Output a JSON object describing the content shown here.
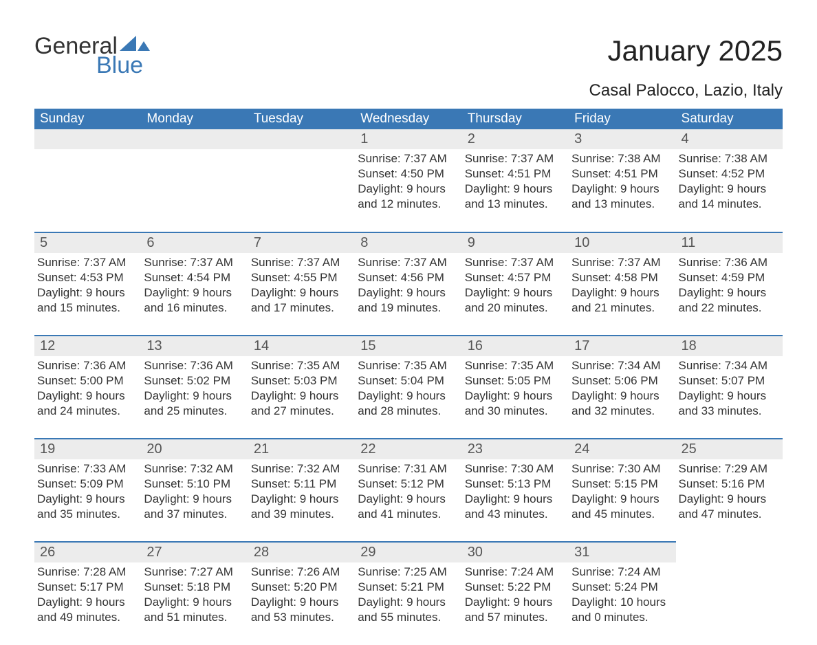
{
  "logo": {
    "general": "General",
    "blue": "Blue",
    "flag_color": "#3a78b5"
  },
  "title": "January 2025",
  "location": "Casal Palocco, Lazio, Italy",
  "colors": {
    "header_bg": "#3a78b5",
    "daynum_bg": "#ececec",
    "text": "#333333",
    "border": "#3a78b5"
  },
  "weekdays": [
    "Sunday",
    "Monday",
    "Tuesday",
    "Wednesday",
    "Thursday",
    "Friday",
    "Saturday"
  ],
  "weeks": [
    [
      null,
      null,
      null,
      {
        "n": "1",
        "sunrise": "Sunrise: 7:37 AM",
        "sunset": "Sunset: 4:50 PM",
        "d1": "Daylight: 9 hours",
        "d2": "and 12 minutes."
      },
      {
        "n": "2",
        "sunrise": "Sunrise: 7:37 AM",
        "sunset": "Sunset: 4:51 PM",
        "d1": "Daylight: 9 hours",
        "d2": "and 13 minutes."
      },
      {
        "n": "3",
        "sunrise": "Sunrise: 7:38 AM",
        "sunset": "Sunset: 4:51 PM",
        "d1": "Daylight: 9 hours",
        "d2": "and 13 minutes."
      },
      {
        "n": "4",
        "sunrise": "Sunrise: 7:38 AM",
        "sunset": "Sunset: 4:52 PM",
        "d1": "Daylight: 9 hours",
        "d2": "and 14 minutes."
      }
    ],
    [
      {
        "n": "5",
        "sunrise": "Sunrise: 7:37 AM",
        "sunset": "Sunset: 4:53 PM",
        "d1": "Daylight: 9 hours",
        "d2": "and 15 minutes."
      },
      {
        "n": "6",
        "sunrise": "Sunrise: 7:37 AM",
        "sunset": "Sunset: 4:54 PM",
        "d1": "Daylight: 9 hours",
        "d2": "and 16 minutes."
      },
      {
        "n": "7",
        "sunrise": "Sunrise: 7:37 AM",
        "sunset": "Sunset: 4:55 PM",
        "d1": "Daylight: 9 hours",
        "d2": "and 17 minutes."
      },
      {
        "n": "8",
        "sunrise": "Sunrise: 7:37 AM",
        "sunset": "Sunset: 4:56 PM",
        "d1": "Daylight: 9 hours",
        "d2": "and 19 minutes."
      },
      {
        "n": "9",
        "sunrise": "Sunrise: 7:37 AM",
        "sunset": "Sunset: 4:57 PM",
        "d1": "Daylight: 9 hours",
        "d2": "and 20 minutes."
      },
      {
        "n": "10",
        "sunrise": "Sunrise: 7:37 AM",
        "sunset": "Sunset: 4:58 PM",
        "d1": "Daylight: 9 hours",
        "d2": "and 21 minutes."
      },
      {
        "n": "11",
        "sunrise": "Sunrise: 7:36 AM",
        "sunset": "Sunset: 4:59 PM",
        "d1": "Daylight: 9 hours",
        "d2": "and 22 minutes."
      }
    ],
    [
      {
        "n": "12",
        "sunrise": "Sunrise: 7:36 AM",
        "sunset": "Sunset: 5:00 PM",
        "d1": "Daylight: 9 hours",
        "d2": "and 24 minutes."
      },
      {
        "n": "13",
        "sunrise": "Sunrise: 7:36 AM",
        "sunset": "Sunset: 5:02 PM",
        "d1": "Daylight: 9 hours",
        "d2": "and 25 minutes."
      },
      {
        "n": "14",
        "sunrise": "Sunrise: 7:35 AM",
        "sunset": "Sunset: 5:03 PM",
        "d1": "Daylight: 9 hours",
        "d2": "and 27 minutes."
      },
      {
        "n": "15",
        "sunrise": "Sunrise: 7:35 AM",
        "sunset": "Sunset: 5:04 PM",
        "d1": "Daylight: 9 hours",
        "d2": "and 28 minutes."
      },
      {
        "n": "16",
        "sunrise": "Sunrise: 7:35 AM",
        "sunset": "Sunset: 5:05 PM",
        "d1": "Daylight: 9 hours",
        "d2": "and 30 minutes."
      },
      {
        "n": "17",
        "sunrise": "Sunrise: 7:34 AM",
        "sunset": "Sunset: 5:06 PM",
        "d1": "Daylight: 9 hours",
        "d2": "and 32 minutes."
      },
      {
        "n": "18",
        "sunrise": "Sunrise: 7:34 AM",
        "sunset": "Sunset: 5:07 PM",
        "d1": "Daylight: 9 hours",
        "d2": "and 33 minutes."
      }
    ],
    [
      {
        "n": "19",
        "sunrise": "Sunrise: 7:33 AM",
        "sunset": "Sunset: 5:09 PM",
        "d1": "Daylight: 9 hours",
        "d2": "and 35 minutes."
      },
      {
        "n": "20",
        "sunrise": "Sunrise: 7:32 AM",
        "sunset": "Sunset: 5:10 PM",
        "d1": "Daylight: 9 hours",
        "d2": "and 37 minutes."
      },
      {
        "n": "21",
        "sunrise": "Sunrise: 7:32 AM",
        "sunset": "Sunset: 5:11 PM",
        "d1": "Daylight: 9 hours",
        "d2": "and 39 minutes."
      },
      {
        "n": "22",
        "sunrise": "Sunrise: 7:31 AM",
        "sunset": "Sunset: 5:12 PM",
        "d1": "Daylight: 9 hours",
        "d2": "and 41 minutes."
      },
      {
        "n": "23",
        "sunrise": "Sunrise: 7:30 AM",
        "sunset": "Sunset: 5:13 PM",
        "d1": "Daylight: 9 hours",
        "d2": "and 43 minutes."
      },
      {
        "n": "24",
        "sunrise": "Sunrise: 7:30 AM",
        "sunset": "Sunset: 5:15 PM",
        "d1": "Daylight: 9 hours",
        "d2": "and 45 minutes."
      },
      {
        "n": "25",
        "sunrise": "Sunrise: 7:29 AM",
        "sunset": "Sunset: 5:16 PM",
        "d1": "Daylight: 9 hours",
        "d2": "and 47 minutes."
      }
    ],
    [
      {
        "n": "26",
        "sunrise": "Sunrise: 7:28 AM",
        "sunset": "Sunset: 5:17 PM",
        "d1": "Daylight: 9 hours",
        "d2": "and 49 minutes."
      },
      {
        "n": "27",
        "sunrise": "Sunrise: 7:27 AM",
        "sunset": "Sunset: 5:18 PM",
        "d1": "Daylight: 9 hours",
        "d2": "and 51 minutes."
      },
      {
        "n": "28",
        "sunrise": "Sunrise: 7:26 AM",
        "sunset": "Sunset: 5:20 PM",
        "d1": "Daylight: 9 hours",
        "d2": "and 53 minutes."
      },
      {
        "n": "29",
        "sunrise": "Sunrise: 7:25 AM",
        "sunset": "Sunset: 5:21 PM",
        "d1": "Daylight: 9 hours",
        "d2": "and 55 minutes."
      },
      {
        "n": "30",
        "sunrise": "Sunrise: 7:24 AM",
        "sunset": "Sunset: 5:22 PM",
        "d1": "Daylight: 9 hours",
        "d2": "and 57 minutes."
      },
      {
        "n": "31",
        "sunrise": "Sunrise: 7:24 AM",
        "sunset": "Sunset: 5:24 PM",
        "d1": "Daylight: 10 hours",
        "d2": "and 0 minutes."
      },
      null
    ]
  ]
}
